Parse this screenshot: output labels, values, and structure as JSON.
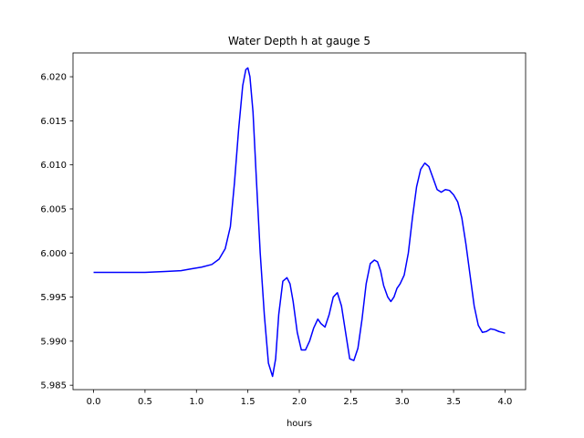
{
  "chart_data": {
    "type": "line",
    "title": "Water Depth h at gauge 5",
    "xlabel": "hours",
    "ylabel": "",
    "xlim": [
      -0.2,
      4.2
    ],
    "ylim": [
      5.9845,
      6.0227
    ],
    "xticks": [
      0.0,
      0.5,
      1.0,
      1.5,
      2.0,
      2.5,
      3.0,
      3.5,
      4.0
    ],
    "xtick_labels": [
      "0.0",
      "0.5",
      "1.0",
      "1.5",
      "2.0",
      "2.5",
      "3.0",
      "3.5",
      "4.0"
    ],
    "yticks": [
      5.985,
      5.99,
      5.995,
      6.0,
      6.005,
      6.01,
      6.015,
      6.02
    ],
    "ytick_labels": [
      "5.985",
      "5.990",
      "5.995",
      "6.000",
      "6.005",
      "6.010",
      "6.015",
      "6.020"
    ],
    "grid": false,
    "series": [
      {
        "color": "#0000ff",
        "x": [
          0.0,
          0.25,
          0.5,
          0.7,
          0.85,
          0.95,
          1.05,
          1.15,
          1.22,
          1.28,
          1.33,
          1.37,
          1.41,
          1.45,
          1.48,
          1.5,
          1.52,
          1.55,
          1.58,
          1.62,
          1.66,
          1.7,
          1.74,
          1.77,
          1.8,
          1.84,
          1.88,
          1.91,
          1.94,
          1.98,
          2.02,
          2.06,
          2.1,
          2.14,
          2.18,
          2.21,
          2.25,
          2.29,
          2.33,
          2.37,
          2.41,
          2.45,
          2.49,
          2.53,
          2.57,
          2.61,
          2.65,
          2.69,
          2.73,
          2.76,
          2.79,
          2.82,
          2.86,
          2.89,
          2.92,
          2.95,
          2.98,
          3.02,
          3.06,
          3.1,
          3.14,
          3.18,
          3.22,
          3.26,
          3.3,
          3.34,
          3.38,
          3.42,
          3.46,
          3.5,
          3.54,
          3.58,
          3.62,
          3.66,
          3.7,
          3.74,
          3.78,
          3.82,
          3.86,
          3.9,
          3.94,
          3.97,
          4.0
        ],
        "y": [
          5.9978,
          5.9978,
          5.9978,
          5.9979,
          5.998,
          5.9982,
          5.9984,
          5.9987,
          5.9993,
          6.0005,
          6.003,
          6.008,
          6.014,
          6.019,
          6.0208,
          6.021,
          6.02,
          6.016,
          6.009,
          6.0,
          5.993,
          5.9875,
          5.986,
          5.988,
          5.993,
          5.9968,
          5.9972,
          5.9965,
          5.9945,
          5.991,
          5.989,
          5.989,
          5.99,
          5.9915,
          5.9925,
          5.992,
          5.9916,
          5.993,
          5.995,
          5.9955,
          5.994,
          5.991,
          5.988,
          5.9878,
          5.9892,
          5.9925,
          5.9965,
          5.9988,
          5.9992,
          5.999,
          5.998,
          5.9963,
          5.995,
          5.9945,
          5.995,
          5.996,
          5.9965,
          5.9975,
          6.0,
          6.004,
          6.0075,
          6.0095,
          6.0102,
          6.0098,
          6.0085,
          6.0072,
          6.0069,
          6.0072,
          6.0071,
          6.0066,
          6.0058,
          6.004,
          6.001,
          5.9975,
          5.994,
          5.9918,
          5.991,
          5.9911,
          5.9914,
          5.9913,
          5.9911,
          5.991,
          5.9909
        ]
      }
    ]
  }
}
